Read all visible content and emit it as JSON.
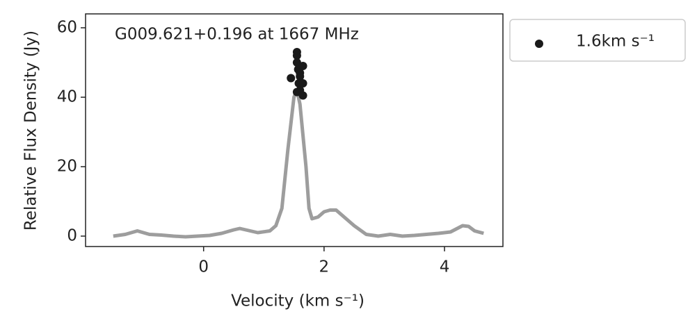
{
  "chart_data": {
    "type": "line",
    "title": "G009.621+0.196 at 1667 MHz",
    "x_label": "Velocity (km s⁻¹)",
    "y_label": "Relative Flux Density (Jy)",
    "xlim": [
      -1.96,
      4.97
    ],
    "ylim": [
      -3,
      64
    ],
    "xticks": [
      0,
      2,
      4
    ],
    "yticks": [
      0,
      20,
      40,
      60
    ],
    "legend": "outside-right",
    "series": [
      {
        "color": "#8c8c8c",
        "x": [
          -1.5,
          -1.3,
          -1.1,
          -0.9,
          -0.7,
          -0.5,
          -0.3,
          -0.1,
          0.1,
          0.3,
          0.5,
          0.6,
          0.7,
          0.9,
          1.1,
          1.2,
          1.3,
          1.4,
          1.5,
          1.55,
          1.6,
          1.7,
          1.75,
          1.8,
          1.9,
          2.0,
          2.1,
          2.2,
          2.3,
          2.5,
          2.7,
          2.9,
          3.1,
          3.3,
          3.5,
          3.7,
          3.9,
          4.1,
          4.3,
          4.4,
          4.5,
          4.65
        ],
        "values": [
          0,
          0.5,
          1.5,
          0.5,
          0.3,
          0,
          -0.2,
          0,
          0.2,
          0.8,
          1.8,
          2.2,
          1.8,
          1,
          1.5,
          3,
          8,
          25,
          40,
          42,
          38,
          20,
          8,
          5,
          5.5,
          7,
          7.5,
          7.5,
          6,
          3,
          0.5,
          0,
          0.5,
          0,
          0.2,
          0.5,
          0.8,
          1.2,
          3,
          2.8,
          1.5,
          0.8
        ]
      },
      {
        "name": "1.6km s⁻¹",
        "color": "#1a1a1a",
        "type": "scatter",
        "x": [
          1.45,
          1.55,
          1.55,
          1.55,
          1.57,
          1.6,
          1.58,
          1.6,
          1.55,
          1.65,
          1.65,
          1.65,
          1.6
        ],
        "values": [
          45.5,
          53,
          52,
          50,
          48,
          46,
          44,
          42,
          41.5,
          49,
          44,
          40.5,
          47
        ]
      }
    ]
  }
}
